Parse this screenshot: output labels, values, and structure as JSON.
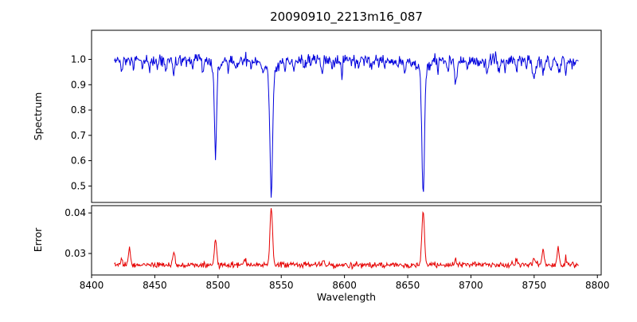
{
  "chart": {
    "title": "20090910_2213m16_087",
    "xlabel": "Wavelength",
    "ylabel_top": "Spectrum",
    "ylabel_bottom": "Error"
  },
  "chart_data": [
    {
      "type": "line",
      "panel": "spectrum",
      "name": "Spectrum",
      "title": "20090910_2213m16_087",
      "xlabel": "Wavelength",
      "ylabel": "Spectrum",
      "color": "#0000dd",
      "xlim": [
        8400,
        8803
      ],
      "ylim": [
        0.435,
        1.115
      ],
      "grid": false,
      "legend": "none",
      "xticks": [
        8400,
        8450,
        8500,
        8550,
        8600,
        8650,
        8700,
        8750,
        8800
      ],
      "xtick_labels": [
        "8400",
        "8450",
        "8500",
        "8550",
        "8600",
        "8650",
        "8700",
        "8750",
        "8800"
      ],
      "show_xtick_labels": false,
      "yticks": [
        0.5,
        0.6,
        0.7,
        0.8,
        0.9,
        1.0
      ],
      "ytick_labels": [
        "0.5",
        "0.6",
        "0.7",
        "0.8",
        "0.9",
        "1.0"
      ],
      "x_start": 8418,
      "x_end": 8785,
      "x_step": 0.5,
      "baseline": 0.995,
      "noise_sigma": 0.012,
      "seed": 12345,
      "features_format": "[center_wavelength, amplitude, sigma] gaussian; negative amplitude = absorption",
      "features": [
        [
          8498.0,
          -0.32,
          0.8
        ],
        [
          8498.0,
          -0.045,
          3.0
        ],
        [
          8542.1,
          -0.47,
          1.0
        ],
        [
          8542.1,
          -0.06,
          4.0
        ],
        [
          8662.2,
          -0.48,
          1.0
        ],
        [
          8662.2,
          -0.05,
          4.0
        ],
        [
          8424,
          -0.05,
          0.7
        ],
        [
          8433,
          -0.04,
          0.6
        ],
        [
          8440,
          -0.03,
          0.5
        ],
        [
          8446,
          -0.04,
          0.6
        ],
        [
          8452,
          -0.03,
          0.5
        ],
        [
          8459,
          -0.035,
          0.6
        ],
        [
          8465,
          -0.055,
          0.7
        ],
        [
          8471,
          -0.03,
          0.5
        ],
        [
          8480,
          -0.03,
          0.5
        ],
        [
          8488,
          -0.04,
          0.6
        ],
        [
          8508,
          -0.035,
          0.5
        ],
        [
          8514,
          -0.04,
          0.6
        ],
        [
          8526,
          -0.03,
          0.5
        ],
        [
          8536,
          -0.03,
          0.5
        ],
        [
          8553,
          -0.03,
          0.5
        ],
        [
          8560,
          -0.03,
          0.5
        ],
        [
          8568,
          -0.035,
          0.6
        ],
        [
          8582,
          -0.05,
          0.7
        ],
        [
          8590,
          -0.03,
          0.5
        ],
        [
          8598,
          -0.045,
          0.6
        ],
        [
          8611,
          -0.03,
          0.5
        ],
        [
          8621,
          -0.04,
          0.6
        ],
        [
          8632,
          -0.035,
          0.5
        ],
        [
          8642,
          -0.03,
          0.5
        ],
        [
          8648,
          -0.05,
          0.7
        ],
        [
          8674,
          -0.04,
          0.6
        ],
        [
          8682,
          -0.035,
          0.5
        ],
        [
          8688,
          -0.09,
          0.9
        ],
        [
          8697,
          -0.03,
          0.5
        ],
        [
          8706,
          -0.03,
          0.5
        ],
        [
          8713,
          -0.05,
          0.7
        ],
        [
          8722,
          -0.035,
          0.5
        ],
        [
          8727,
          -0.04,
          0.6
        ],
        [
          8736,
          -0.05,
          0.7
        ],
        [
          8744,
          -0.035,
          0.5
        ],
        [
          8750,
          -0.08,
          0.9
        ],
        [
          8757,
          -0.04,
          0.6
        ],
        [
          8763,
          -0.05,
          0.7
        ],
        [
          8770,
          -0.04,
          0.6
        ],
        [
          8775,
          -0.045,
          0.6
        ]
      ]
    },
    {
      "type": "line",
      "panel": "error",
      "name": "Error",
      "xlabel": "Wavelength",
      "ylabel": "Error",
      "color": "#e60000",
      "xlim": [
        8400,
        8803
      ],
      "ylim": [
        0.0247,
        0.0418
      ],
      "grid": false,
      "legend": "none",
      "xticks": [
        8400,
        8450,
        8500,
        8550,
        8600,
        8650,
        8700,
        8750,
        8800
      ],
      "xtick_labels": [
        "8400",
        "8450",
        "8500",
        "8550",
        "8600",
        "8650",
        "8700",
        "8750",
        "8800"
      ],
      "show_xtick_labels": true,
      "yticks": [
        0.03,
        0.04
      ],
      "ytick_labels": [
        "0.03",
        "0.04"
      ],
      "x_start": 8418,
      "x_end": 8785,
      "x_step": 0.5,
      "baseline": 0.0272,
      "noise_sigma": 0.00035,
      "seed": 777,
      "features_format": "[center_wavelength, amplitude, sigma] gaussian; positive amplitude = error spike",
      "features": [
        [
          8430,
          0.0038,
          0.8
        ],
        [
          8465,
          0.0033,
          0.8
        ],
        [
          8498,
          0.006,
          0.9
        ],
        [
          8542.1,
          0.0141,
          1.0
        ],
        [
          8662.2,
          0.0133,
          1.0
        ],
        [
          8757,
          0.004,
          0.9
        ],
        [
          8769,
          0.0042,
          0.8
        ],
        [
          8424,
          0.0015,
          0.7
        ],
        [
          8521,
          0.0012,
          0.7
        ],
        [
          8583,
          0.0012,
          0.7
        ],
        [
          8688,
          0.0014,
          0.8
        ],
        [
          8736,
          0.0013,
          0.8
        ],
        [
          8750,
          0.0016,
          0.8
        ],
        [
          8775,
          0.0015,
          0.7
        ]
      ]
    }
  ]
}
